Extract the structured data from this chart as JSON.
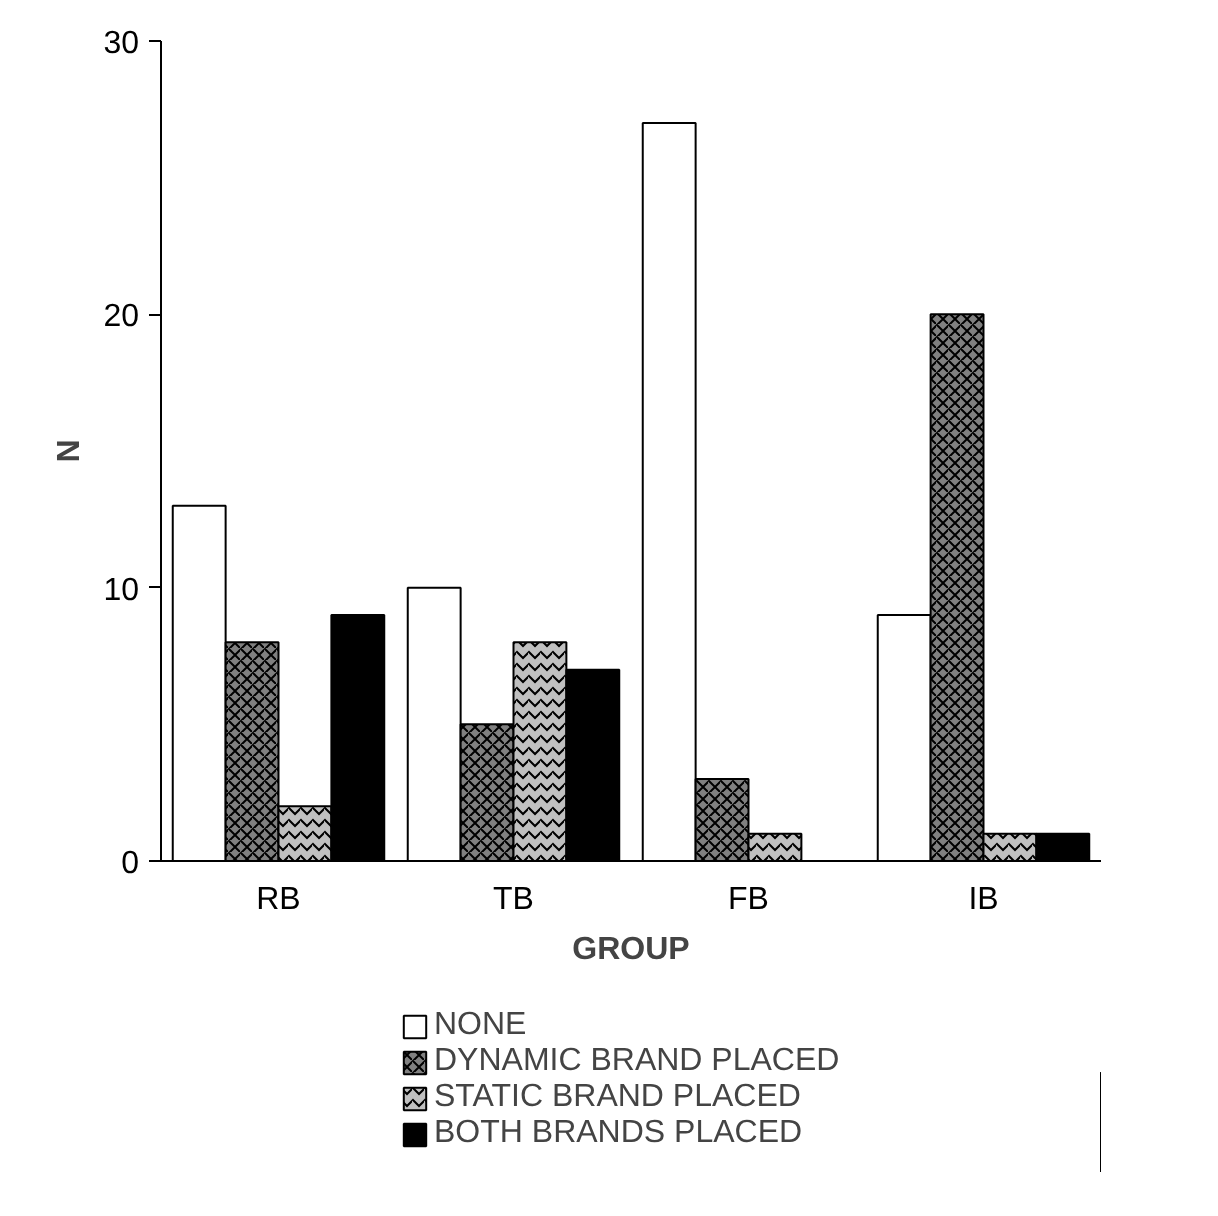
{
  "chart_data": {
    "type": "bar",
    "xlabel": "GROUP",
    "ylabel": "N",
    "categories": [
      "RB",
      "TB",
      "FB",
      "IB"
    ],
    "series": [
      {
        "name": "NONE",
        "color": "#ffffff",
        "values": [
          13,
          10,
          27,
          9
        ]
      },
      {
        "name": "DYNAMIC BRAND PLACED",
        "color": "#808080",
        "values": [
          8,
          5,
          3,
          20
        ]
      },
      {
        "name": "STATIC BRAND PLACED",
        "color": "#c0c0c0",
        "values": [
          2,
          8,
          1,
          1
        ]
      },
      {
        "name": "BOTH BRANDS PLACED",
        "color": "#000000",
        "values": [
          9,
          7,
          0,
          1
        ]
      }
    ],
    "ylim": [
      0,
      30
    ],
    "yticks": [
      0,
      10,
      20,
      30
    ],
    "grid": false,
    "legend": "bottom"
  }
}
